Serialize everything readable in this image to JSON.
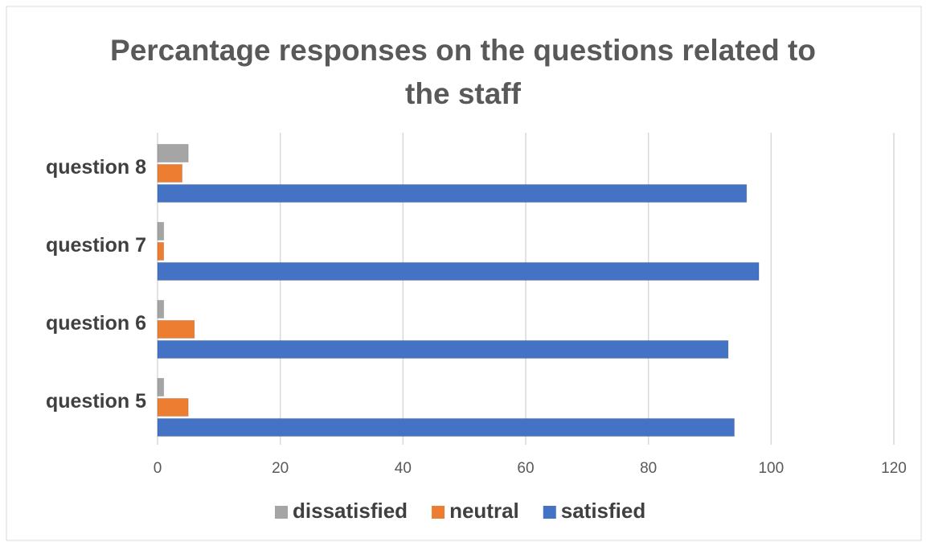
{
  "chart_data": {
    "type": "hbar",
    "title": "Percantage responses on the questions related to the staff",
    "categories": [
      "question 5",
      "question 6",
      "question 7",
      "question 8"
    ],
    "series": [
      {
        "name": "dissatisfied",
        "color": "#a5a5a5",
        "values": [
          1,
          1,
          1,
          5
        ]
      },
      {
        "name": "neutral",
        "color": "#ed7d31",
        "values": [
          5,
          6,
          1,
          4
        ]
      },
      {
        "name": "satisfied",
        "color": "#4472c4",
        "values": [
          94,
          93,
          98,
          96
        ]
      }
    ],
    "xlim": [
      0,
      120
    ],
    "xticks": [
      0,
      20,
      40,
      60,
      80,
      100,
      120
    ],
    "grid": true,
    "legend": "bottom"
  }
}
